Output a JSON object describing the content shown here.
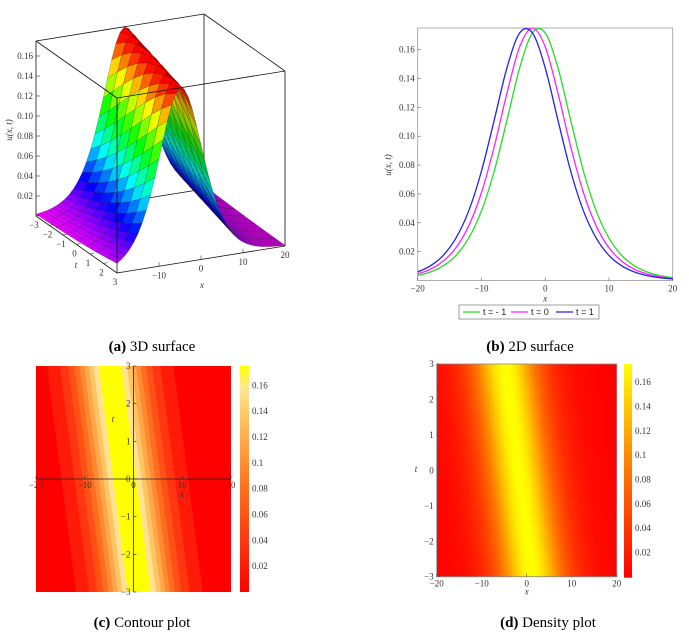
{
  "captions": [
    {
      "label": "(a)",
      "text": "3D surface"
    },
    {
      "label": "(b)",
      "text": "2D surface"
    },
    {
      "label": "(c)",
      "text": "Contour plot"
    },
    {
      "label": "(d)",
      "text": "Density plot"
    }
  ],
  "wave_model": {
    "u_peak": 0.175,
    "width_param": 0.14,
    "peak_x_at_t0": -1.8,
    "peak_shift_per_unit_t": -1
  },
  "chart_data": [
    {
      "type": "surface",
      "title": "3D surface",
      "xlabel": "x",
      "ylabel": "t",
      "zlabel": "u(x, t)",
      "xlim": [
        -20,
        20
      ],
      "ylim": [
        -3,
        3
      ],
      "zlim": [
        0,
        0.175
      ],
      "x_ticks": [
        -10,
        0,
        10,
        20
      ],
      "t_ticks": [
        -3,
        -2,
        -1,
        0,
        1,
        2,
        3
      ],
      "z_ticks": [
        0.02,
        0.04,
        0.06,
        0.08,
        0.1,
        0.12,
        0.14,
        0.16
      ],
      "z_tick_labels": [
        "0.02",
        "0.04",
        "0.06",
        "0.08",
        "0.10",
        "0.12",
        "0.14",
        "0.16"
      ],
      "colormap": "rainbow (magenta low → red high)"
    },
    {
      "type": "line",
      "title": "2D surface",
      "xlabel": "x",
      "ylabel": "u(x, t)",
      "xlim": [
        -20,
        20
      ],
      "ylim": [
        0,
        0.175
      ],
      "x_ticks": [
        -20,
        -10,
        0,
        10,
        20
      ],
      "y_ticks": [
        0.02,
        0.04,
        0.06,
        0.08,
        0.1,
        0.12,
        0.14,
        0.16
      ],
      "y_tick_labels": [
        "0.02",
        "0.04",
        "0.06",
        "0.08",
        "0.10",
        "0.12",
        "0.14",
        "0.16"
      ],
      "legend_position": "bottom",
      "x": [
        -20,
        -18,
        -16,
        -14,
        -12,
        -10,
        -8,
        -6,
        -4,
        -2,
        0,
        2,
        4,
        6,
        8,
        10,
        12,
        14,
        16,
        18,
        20
      ],
      "series": [
        {
          "name": "t = - 1",
          "color": "#22dd22",
          "values": [
            0.0034,
            0.0059,
            0.0102,
            0.0174,
            0.0294,
            0.0482,
            0.0758,
            0.1111,
            0.1474,
            0.1716,
            0.1716,
            0.1474,
            0.1111,
            0.0758,
            0.0482,
            0.0294,
            0.0174,
            0.0102,
            0.0059,
            0.0034,
            0.0019
          ]
        },
        {
          "name": "t = 0",
          "color": "#ff22ff",
          "values": [
            0.0045,
            0.0078,
            0.0134,
            0.0227,
            0.0378,
            0.0609,
            0.0927,
            0.1298,
            0.162,
            0.175,
            0.162,
            0.1298,
            0.0927,
            0.0609,
            0.0378,
            0.0227,
            0.0134,
            0.0078,
            0.0045,
            0.0026,
            0.0015
          ]
        },
        {
          "name": "t = 1",
          "color": "#2222ee",
          "values": [
            0.0059,
            0.0102,
            0.0174,
            0.0294,
            0.0482,
            0.0758,
            0.1111,
            0.1474,
            0.1716,
            0.1716,
            0.1474,
            0.1111,
            0.0758,
            0.0482,
            0.0294,
            0.0174,
            0.0102,
            0.0059,
            0.0034,
            0.0019,
            0.0011
          ]
        }
      ]
    },
    {
      "type": "contour",
      "title": "Contour plot",
      "xlabel": "x",
      "ylabel": "t",
      "xlim": [
        -20,
        20
      ],
      "ylim": [
        -3,
        3
      ],
      "x_ticks": [
        -20,
        -10,
        0,
        10,
        20
      ],
      "t_ticks": [
        -3,
        -2,
        -1,
        0,
        1,
        2,
        3
      ],
      "levels": [
        0.0175,
        0.035,
        0.0525,
        0.07,
        0.0875,
        0.105,
        0.1225,
        0.14,
        0.1575
      ],
      "colorbar_ticks": [
        0.02,
        0.04,
        0.06,
        0.08,
        0.1,
        0.12,
        0.14,
        0.16
      ],
      "colorbar_tick_labels": [
        "0.02",
        "0.04",
        "0.06",
        "0.08",
        "0.1",
        "0.12",
        "0.14",
        "0.16"
      ],
      "colorbar_range": [
        0,
        0.175
      ]
    },
    {
      "type": "heatmap",
      "title": "Density plot",
      "xlabel": "x",
      "ylabel": "t",
      "xlim": [
        -20,
        20
      ],
      "ylim": [
        -3,
        3
      ],
      "x_ticks": [
        -20,
        -10,
        0,
        10,
        20
      ],
      "t_ticks": [
        -3,
        -2,
        -1,
        0,
        1,
        2,
        3
      ],
      "colorbar_ticks": [
        0.02,
        0.04,
        0.06,
        0.08,
        0.1,
        0.12,
        0.14,
        0.16
      ],
      "colorbar_tick_labels": [
        "0.02",
        "0.04",
        "0.06",
        "0.08",
        "0.1",
        "0.12",
        "0.14",
        "0.16"
      ],
      "colorbar_range": [
        0,
        0.175
      ]
    }
  ]
}
